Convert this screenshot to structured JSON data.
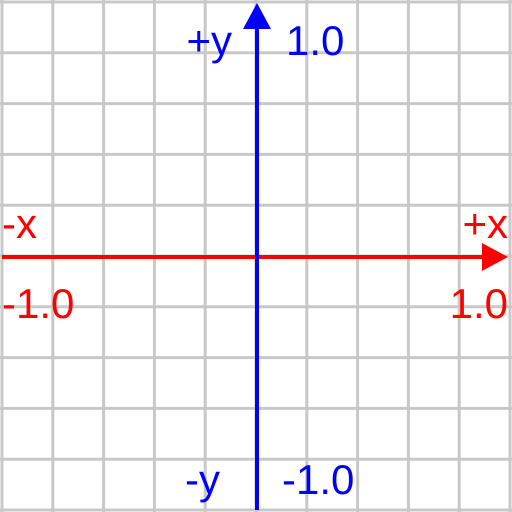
{
  "colors": {
    "grid": "#c8c8c8",
    "x_axis": "#ff0000",
    "y_axis": "#0000ff",
    "background": "#ffffff"
  },
  "grid": {
    "columns": 10,
    "rows": 10
  },
  "x_axis": {
    "negative_label": "-x",
    "positive_label": "+x",
    "min_label": "-1.0",
    "max_label": "1.0",
    "min": -1.0,
    "max": 1.0
  },
  "y_axis": {
    "negative_label": "-y",
    "positive_label": "+y",
    "min_label": "-1.0",
    "max_label": "1.0",
    "min": -1.0,
    "max": 1.0
  }
}
